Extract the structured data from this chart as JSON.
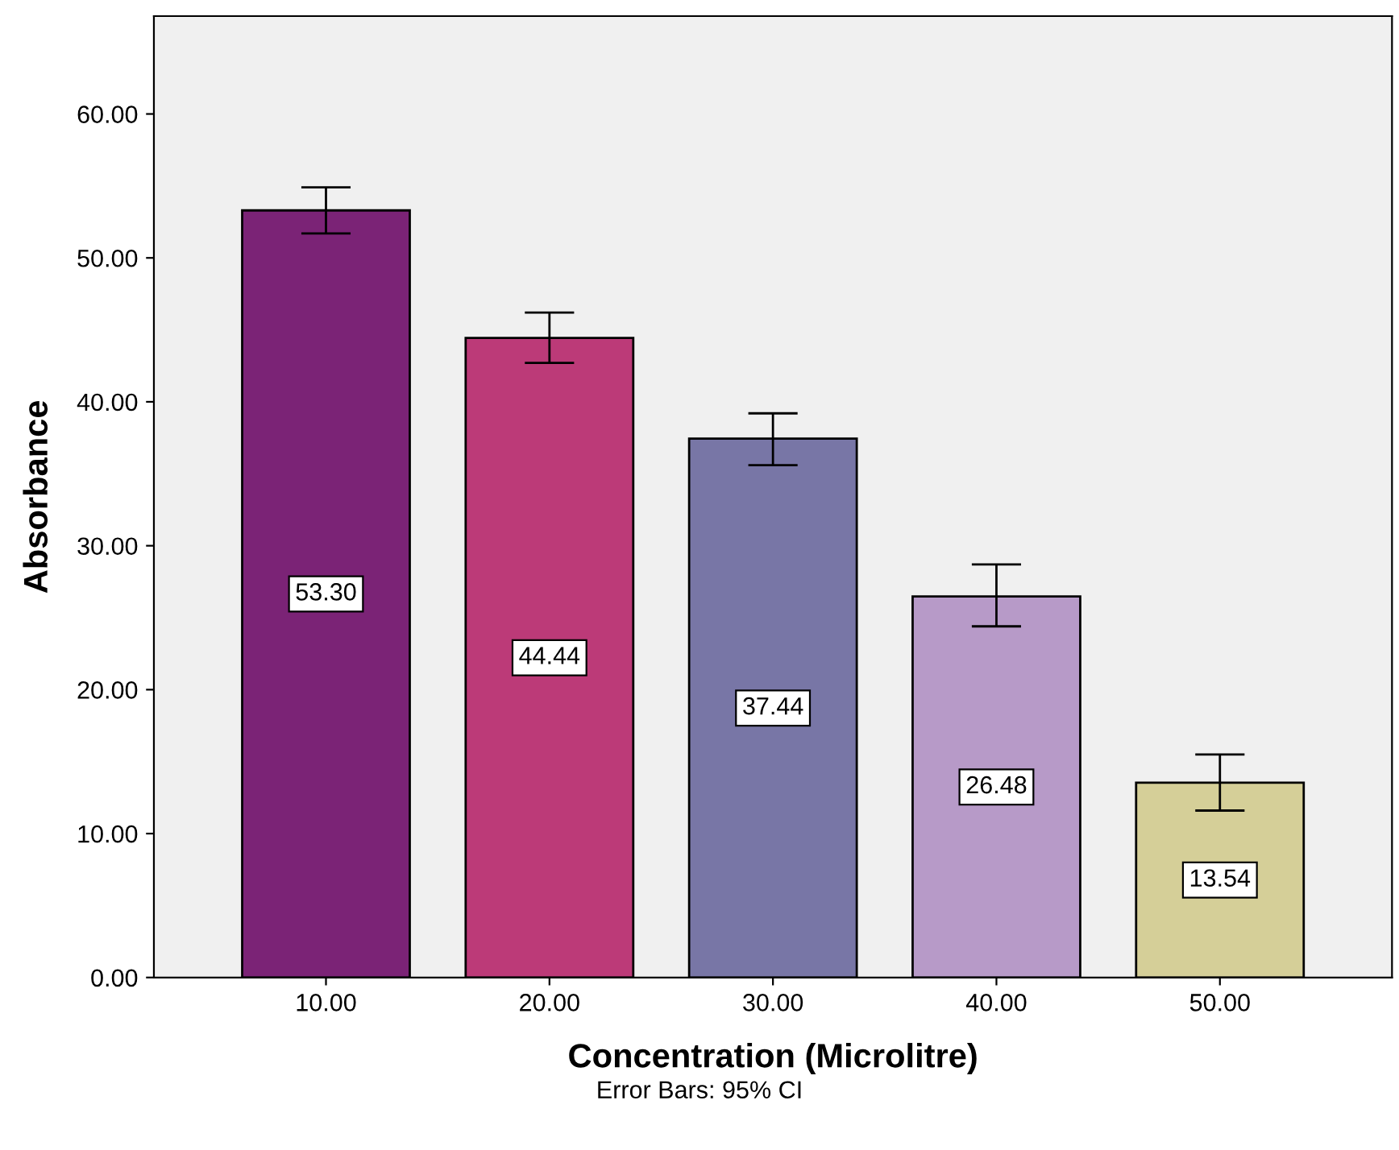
{
  "chart_data": {
    "type": "bar",
    "xlabel": "Concentration (Microlitre)",
    "ylabel": "Absorbance",
    "categories": [
      "10.00",
      "20.00",
      "30.00",
      "40.00",
      "50.00"
    ],
    "values": [
      53.3,
      44.44,
      37.44,
      26.48,
      13.54
    ],
    "colors": [
      "#7b2376",
      "#bc3a78",
      "#7876a6",
      "#b79ac8",
      "#d5cf98"
    ],
    "errors": [
      [
        51.7,
        54.9
      ],
      [
        42.7,
        46.2
      ],
      [
        35.6,
        39.2
      ],
      [
        24.4,
        28.7
      ],
      [
        11.6,
        15.5
      ]
    ],
    "value_labels": [
      "53.30",
      "44.44",
      "37.44",
      "26.48",
      "13.54"
    ],
    "ylim": [
      0,
      66.8
    ],
    "yticks": [
      {
        "value": 0,
        "label": "0.00"
      },
      {
        "value": 10,
        "label": "10.00"
      },
      {
        "value": 20,
        "label": "20.00"
      },
      {
        "value": 30,
        "label": "30.00"
      },
      {
        "value": 40,
        "label": "40.00"
      },
      {
        "value": 50,
        "label": "50.00"
      },
      {
        "value": 60,
        "label": "60.00"
      }
    ],
    "grid": false,
    "annotations": [
      "Error Bars: 95% CI"
    ]
  }
}
